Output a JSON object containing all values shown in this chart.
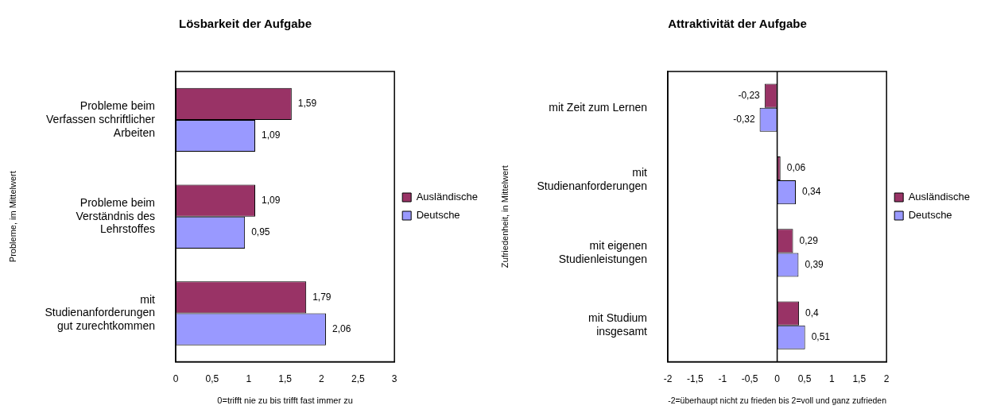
{
  "chart_data": [
    {
      "type": "bar",
      "orientation": "horizontal",
      "title": "Lösbarkeit der Aufgabe",
      "xlabel": "0=trifft nie zu bis trifft fast immer zu",
      "ylabel": "Probleme, im Mittelwert",
      "categories": [
        "Probleme beim\nVerfassen schriftlicher\nArbeiten",
        "Probleme beim\nVerständnis des\nLehrstoffes",
        "mit\nStudienanforderungen\ngut zurechtkommen"
      ],
      "series": [
        {
          "name": "Ausländische",
          "color": "#993366",
          "values": [
            1.59,
            1.09,
            1.79
          ],
          "value_labels": [
            "1,59",
            "1,09",
            "1,79"
          ]
        },
        {
          "name": "Deutsche",
          "color": "#9999ff",
          "values": [
            1.09,
            0.95,
            2.06
          ],
          "value_labels": [
            "1,09",
            "0,95",
            "2,06"
          ]
        }
      ],
      "xlim": [
        0,
        3
      ],
      "xticks": [
        0,
        {
          "value": 0.5,
          "label": "0,5"
        },
        1,
        {
          "value": 1.5,
          "label": "1,5"
        },
        2,
        {
          "value": 2.5,
          "label": "2,5"
        },
        3
      ],
      "grid": false,
      "legend": "right"
    },
    {
      "type": "bar",
      "orientation": "horizontal",
      "title": "Attraktivität der Aufgabe",
      "xlabel": "-2=überhaupt nicht zu frieden bis 2=voll und ganz zufrieden",
      "ylabel": "Zufriedenheit, in Mittelwert",
      "categories": [
        "mit Zeit zum Lernen",
        "mit\nStudienanforderungen",
        "mit eigenen\nStudienleistungen",
        "mit Studium\ninsgesamt"
      ],
      "series": [
        {
          "name": "Ausländische",
          "color": "#993366",
          "values": [
            -0.23,
            0.06,
            0.29,
            0.4
          ],
          "value_labels": [
            "-0,23",
            "0,06",
            "0,29",
            "0,4"
          ]
        },
        {
          "name": "Deutsche",
          "color": "#9999ff",
          "values": [
            -0.32,
            0.34,
            0.39,
            0.51
          ],
          "value_labels": [
            "-0,32",
            "0,34",
            "0,39",
            "0,51"
          ]
        }
      ],
      "ref_lines": [
        {
          "axis": "x",
          "value": 0,
          "color": "#000000"
        }
      ],
      "xlim": [
        -2,
        2
      ],
      "xticks": [
        -2,
        {
          "value": -1.5,
          "label": "-1,5"
        },
        -1,
        {
          "value": -0.5,
          "label": "-0,5"
        },
        0,
        {
          "value": 0.5,
          "label": "0,5"
        },
        1,
        {
          "value": 1.5,
          "label": "1,5"
        },
        2
      ],
      "grid": false,
      "legend": "right"
    }
  ]
}
